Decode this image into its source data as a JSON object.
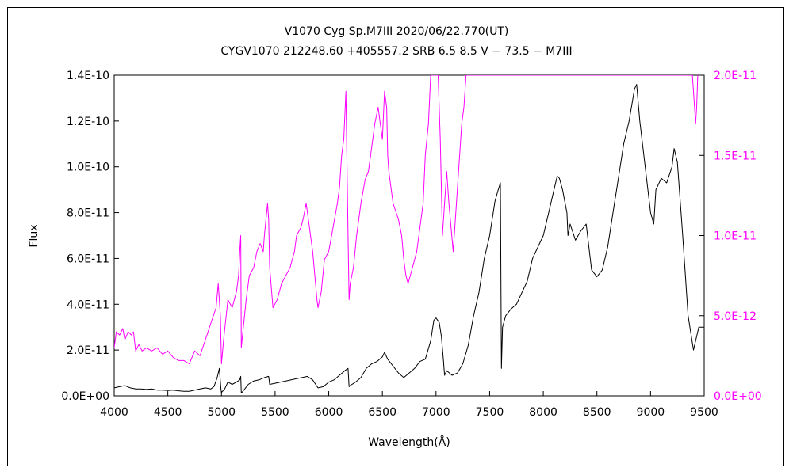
{
  "chart_data": {
    "type": "line",
    "title": "V1070 Cyg    Sp.M7III    2020/06/22.770(UT)",
    "subtitle": "CYGV1070 212248.60 +405557.2 SRB 6.5 8.5 V − 73.5 − M7III",
    "xlabel": "Wavelength(Å)",
    "ylabel": "Flux",
    "xlim": [
      4000,
      9500
    ],
    "ylim": [
      0,
      1.4e-10
    ],
    "y2lim": [
      0,
      2e-11
    ],
    "grid": false,
    "x_ticks": [
      "4000",
      "4500",
      "5000",
      "5500",
      "6000",
      "6500",
      "7000",
      "7500",
      "8000",
      "8500",
      "9000",
      "9500"
    ],
    "y_ticks": [
      "0.0E+00",
      "2.0E-11",
      "4.0E-11",
      "6.0E-11",
      "8.0E-11",
      "1.0E-10",
      "1.2E-10",
      "1.4E-10"
    ],
    "y2_ticks": [
      "0.0E+00",
      "5.0E-12",
      "1.0E-11",
      "1.5E-11",
      "2.0E-11"
    ],
    "colors": {
      "primary": "#000000",
      "secondary": "#ff00ff"
    },
    "series": [
      {
        "axis": "left",
        "x": [
          4000,
          4050,
          4100,
          4150,
          4200,
          4250,
          4300,
          4350,
          4400,
          4450,
          4500,
          4550,
          4600,
          4650,
          4700,
          4750,
          4800,
          4850,
          4900,
          4930,
          4960,
          4980,
          4995,
          5000,
          5030,
          5060,
          5100,
          5140,
          5170,
          5180,
          5185,
          5200,
          5250,
          5300,
          5350,
          5400,
          5440,
          5450,
          5500,
          5550,
          5600,
          5650,
          5700,
          5750,
          5800,
          5850,
          5900,
          5950,
          6000,
          6050,
          6100,
          6150,
          6180,
          6190,
          6200,
          6250,
          6300,
          6350,
          6400,
          6450,
          6500,
          6520,
          6550,
          6600,
          6650,
          6700,
          6750,
          6800,
          6850,
          6900,
          6950,
          6980,
          7000,
          7030,
          7050,
          7070,
          7080,
          7100,
          7150,
          7200,
          7250,
          7300,
          7350,
          7400,
          7450,
          7500,
          7550,
          7580,
          7600,
          7605,
          7610,
          7620,
          7650,
          7700,
          7750,
          7800,
          7850,
          7900,
          7950,
          8000,
          8050,
          8100,
          8130,
          8150,
          8180,
          8200,
          8220,
          8230,
          8250,
          8300,
          8350,
          8400,
          8450,
          8500,
          8550,
          8600,
          8650,
          8700,
          8750,
          8800,
          8850,
          8870,
          8900,
          8950,
          9000,
          9030,
          9050,
          9100,
          9150,
          9200,
          9220,
          9250,
          9300,
          9350,
          9400,
          9450,
          9500
        ],
        "values": [
          3.5e-12,
          4e-12,
          4.5e-12,
          3.5e-12,
          3e-12,
          3e-12,
          2.8e-12,
          3e-12,
          2.5e-12,
          2.5e-12,
          2.3e-12,
          2.5e-12,
          2.2e-12,
          2e-12,
          2e-12,
          2.5e-12,
          3e-12,
          3.5e-12,
          3e-12,
          4e-12,
          8e-12,
          1.2e-11,
          3e-12,
          1.5e-12,
          3e-12,
          6e-12,
          5e-12,
          6e-12,
          7e-12,
          8.5e-12,
          1.2e-12,
          2e-12,
          5e-12,
          6.5e-12,
          7e-12,
          8e-12,
          8.5e-12,
          5e-12,
          5.5e-12,
          6e-12,
          6.5e-12,
          7e-12,
          7.5e-12,
          8e-12,
          8.5e-12,
          7e-12,
          3.5e-12,
          4e-12,
          6e-12,
          7e-12,
          9e-12,
          1.1e-11,
          1.2e-11,
          4e-12,
          4.5e-12,
          6e-12,
          8e-12,
          1.2e-11,
          1.4e-11,
          1.5e-11,
          1.7e-11,
          1.9e-11,
          1.6e-11,
          1.3e-11,
          1e-11,
          8e-12,
          1e-11,
          1.2e-11,
          1.5e-11,
          1.6e-11,
          2.4e-11,
          3.3e-11,
          3.4e-11,
          3.2e-11,
          2.6e-11,
          1.5e-11,
          9e-12,
          1.1e-11,
          9e-12,
          1e-11,
          1.4e-11,
          2.2e-11,
          3.5e-11,
          4.5e-11,
          6e-11,
          7e-11,
          8.5e-11,
          9e-11,
          9.3e-11,
          5e-11,
          1.2e-11,
          3e-11,
          3.5e-11,
          3.8e-11,
          4e-11,
          4.5e-11,
          5e-11,
          6e-11,
          6.5e-11,
          7e-11,
          8e-11,
          9e-11,
          9.6e-11,
          9.5e-11,
          9e-11,
          8.5e-11,
          8e-11,
          7e-11,
          7.5e-11,
          6.8e-11,
          7.2e-11,
          7.5e-11,
          5.5e-11,
          5.2e-11,
          5.5e-11,
          6.5e-11,
          8e-11,
          9.5e-11,
          1.1e-10,
          1.2e-10,
          1.34e-10,
          1.36e-10,
          1.2e-10,
          1e-10,
          8e-11,
          7.5e-11,
          9e-11,
          9.5e-11,
          9.3e-11,
          1e-10,
          1.08e-10,
          1.02e-10,
          7e-11,
          3.5e-11,
          2e-11,
          3e-11,
          3e-11
        ]
      },
      {
        "axis": "right",
        "x": [
          4000,
          4020,
          4050,
          4080,
          4100,
          4130,
          4160,
          4180,
          4200,
          4230,
          4260,
          4300,
          4350,
          4400,
          4450,
          4500,
          4550,
          4600,
          4650,
          4700,
          4750,
          4800,
          4850,
          4900,
          4950,
          4970,
          4980,
          4990,
          5000,
          5020,
          5060,
          5100,
          5140,
          5160,
          5170,
          5180,
          5185,
          5200,
          5230,
          5260,
          5300,
          5330,
          5360,
          5390,
          5400,
          5430,
          5440,
          5450,
          5480,
          5520,
          5560,
          5600,
          5640,
          5680,
          5700,
          5740,
          5760,
          5790,
          5800,
          5850,
          5890,
          5900,
          5930,
          5960,
          6000,
          6040,
          6080,
          6100,
          6120,
          6140,
          6160,
          6180,
          6190,
          6200,
          6230,
          6260,
          6300,
          6340,
          6370,
          6400,
          6430,
          6460,
          6480,
          6500,
          6520,
          6540,
          6550,
          6560,
          6600,
          6650,
          6680,
          6700,
          6720,
          6740,
          6780,
          6820,
          6860,
          6880,
          6900,
          6930,
          6950,
          6970,
          6990,
          7000,
          7020,
          7040,
          7060,
          7080,
          7100,
          7120,
          7140,
          7160,
          7180,
          7200,
          7220,
          7240,
          7260,
          7280,
          7300,
          9390,
          9400,
          9410,
          9420,
          9430,
          9440
        ],
        "values": [
          3e-12,
          4e-12,
          3.8e-12,
          4.2e-12,
          3.5e-12,
          4e-12,
          3.8e-12,
          4e-12,
          2.8e-12,
          3.2e-12,
          2.8e-12,
          3e-12,
          2.8e-12,
          3e-12,
          2.6e-12,
          2.8e-12,
          2.4e-12,
          2.2e-12,
          2.2e-12,
          2e-12,
          2.8e-12,
          2.5e-12,
          3.5e-12,
          4.5e-12,
          5.5e-12,
          7e-12,
          6e-12,
          5e-12,
          2e-12,
          3.5e-12,
          6e-12,
          5.5e-12,
          6.5e-12,
          7.5e-12,
          9e-12,
          1e-11,
          3e-12,
          4e-12,
          6e-12,
          7.5e-12,
          8e-12,
          9e-12,
          9.5e-12,
          9e-12,
          1e-11,
          1.2e-11,
          1.1e-11,
          8e-12,
          5.5e-12,
          6e-12,
          7e-12,
          7.5e-12,
          8e-12,
          9e-12,
          1e-11,
          1.05e-11,
          1.1e-11,
          1.2e-11,
          1.15e-11,
          9e-12,
          6e-12,
          5.5e-12,
          6.5e-12,
          8.5e-12,
          9e-12,
          1.05e-11,
          1.2e-11,
          1.3e-11,
          1.5e-11,
          1.6e-11,
          1.9e-11,
          1e-11,
          6e-12,
          7e-12,
          8e-12,
          1e-11,
          1.2e-11,
          1.35e-11,
          1.4e-11,
          1.55e-11,
          1.7e-11,
          1.8e-11,
          1.7e-11,
          1.6e-11,
          1.9e-11,
          1.8e-11,
          1.5e-11,
          1.4e-11,
          1.2e-11,
          1.1e-11,
          1e-11,
          8.5e-12,
          7.5e-12,
          7e-12,
          8e-12,
          9e-12,
          1.1e-11,
          1.2e-11,
          1.5e-11,
          1.7e-11,
          2e-11,
          2e-11,
          2e-11,
          2e-11,
          2e-11,
          1.6e-11,
          1e-11,
          1.2e-11,
          1.4e-11,
          1.2e-11,
          1.05e-11,
          9e-12,
          1.1e-11,
          1.3e-11,
          1.5e-11,
          1.7e-11,
          1.8e-11,
          2e-11,
          2e-11,
          2e-11,
          1.9e-11,
          1.8e-11,
          1.7e-11,
          1.8e-11,
          2e-11
        ]
      }
    ]
  }
}
